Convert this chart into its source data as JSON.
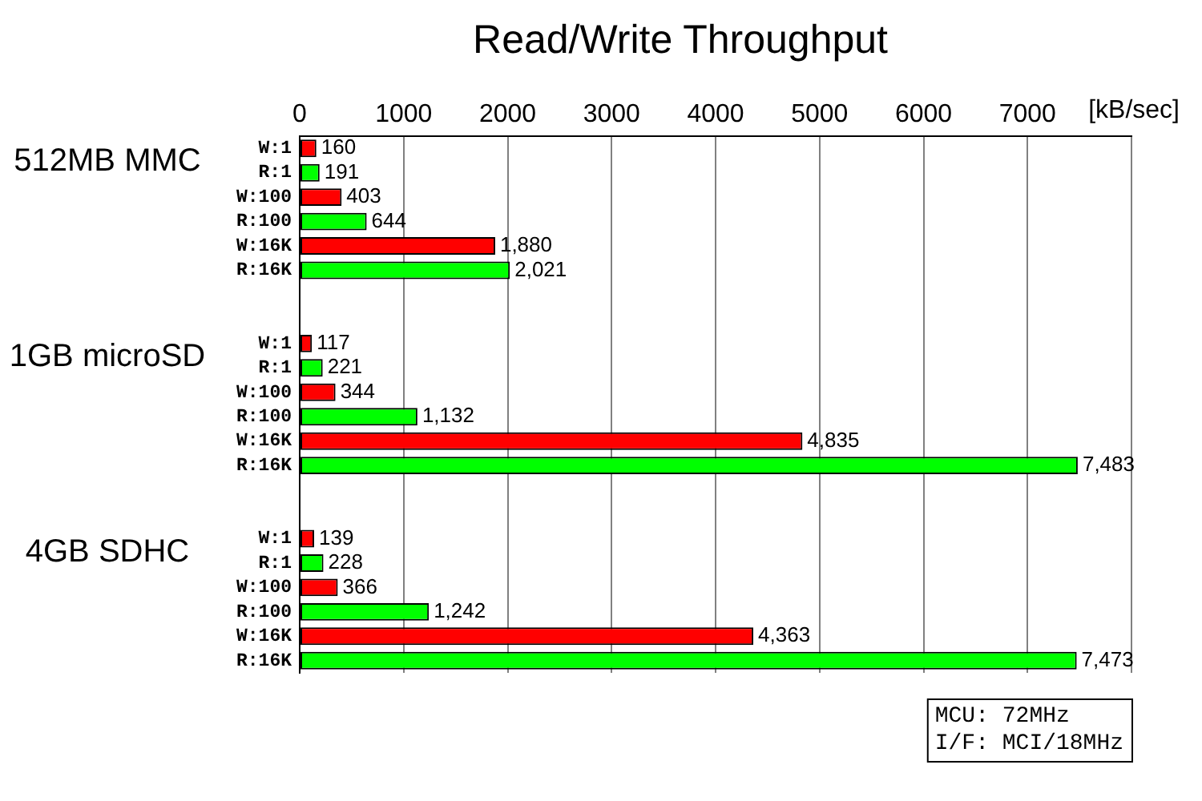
{
  "chart_data": {
    "type": "bar",
    "orientation": "horizontal",
    "title": "Read/Write Throughput",
    "xlabel": "[kB/sec]",
    "categories": [
      "W:1",
      "R:1",
      "W:100",
      "R:100",
      "W:16K",
      "R:16K",
      null,
      null,
      "W:1",
      "R:1",
      "W:100",
      "R:100",
      "W:16K",
      "R:16K",
      null,
      null,
      "W:1",
      "R:1",
      "W:100",
      "R:100",
      "W:16K",
      "R:16K"
    ],
    "values": [
      160,
      191,
      403,
      644,
      1880,
      2021,
      null,
      null,
      117,
      221,
      344,
      1132,
      4835,
      7483,
      null,
      null,
      139,
      228,
      366,
      1242,
      4363,
      7473
    ],
    "colors": [
      "#ff0000",
      "#00ff00",
      "#ff0000",
      "#00ff00",
      "#ff0000",
      "#00ff00",
      null,
      null,
      "#ff0000",
      "#00ff00",
      "#ff0000",
      "#00ff00",
      "#ff0000",
      "#00ff00",
      null,
      null,
      "#ff0000",
      "#00ff00",
      "#ff0000",
      "#00ff00",
      "#ff0000",
      "#00ff00"
    ],
    "value_labels": [
      "160",
      "191",
      "403",
      "644",
      "1,880",
      "2,021",
      null,
      null,
      "117",
      "221",
      "344",
      "1,132",
      "4,835",
      "7,483",
      null,
      null,
      "139",
      "228",
      "366",
      "1,242",
      "4,363",
      "7,473"
    ],
    "xlim": [
      0,
      8000
    ],
    "xticks": [
      0,
      1000,
      2000,
      3000,
      4000,
      5000,
      6000,
      7000,
      {
        "value": 8000,
        "label": null
      }
    ],
    "grid": "x",
    "annotations": [
      "512MB MMC",
      "1GB microSD",
      "4GB SDHC",
      "MCU: 72MHz",
      "I/F: MCI/18MHz"
    ]
  }
}
